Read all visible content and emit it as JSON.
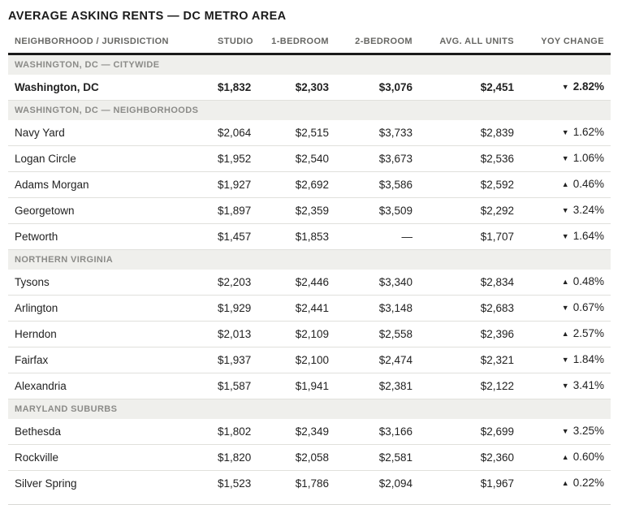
{
  "page": {
    "title": "AVERAGE ASKING RENTS — DC METRO AREA"
  },
  "colors": {
    "down_red": "#c0442a",
    "up_green": "#0f9271",
    "header_rule": "#1a1a1a",
    "row_rule": "#e0e0dc",
    "section_bg": "#efefec",
    "section_text": "#8b8b88",
    "column_header_text": "#666663"
  },
  "icons": {
    "trend_up": "▲",
    "trend_down": "▼"
  },
  "chart_data": {
    "type": "table",
    "title": "AVERAGE ASKING RENTS — DC METRO AREA",
    "columns": [
      "NEIGHBORHOOD / JURISDICTION",
      "STUDIO",
      "1-BEDROOM",
      "2-BEDROOM",
      "AVG. ALL UNITS",
      "YOY CHANGE"
    ],
    "sections": [
      {
        "label": "WASHINGTON, DC — CITYWIDE",
        "rows": [
          {
            "name": "Washington, DC",
            "values": [
              "$1,832",
              "$2,303",
              "$3,076",
              "$2,451"
            ],
            "yoy": "2.82%",
            "direction": "down",
            "emphasis": true
          }
        ]
      },
      {
        "label": "WASHINGTON, DC — NEIGHBORHOODS",
        "rows": [
          {
            "name": "Navy Yard",
            "values": [
              "$2,064",
              "$2,515",
              "$3,733",
              "$2,839"
            ],
            "yoy": "1.62%",
            "direction": "down",
            "emphasis": false
          },
          {
            "name": "Logan Circle",
            "values": [
              "$1,952",
              "$2,540",
              "$3,673",
              "$2,536"
            ],
            "yoy": "1.06%",
            "direction": "down",
            "emphasis": false
          },
          {
            "name": "Adams Morgan",
            "values": [
              "$1,927",
              "$2,692",
              "$3,586",
              "$2,592"
            ],
            "yoy": "0.46%",
            "direction": "up",
            "emphasis": false
          },
          {
            "name": "Georgetown",
            "values": [
              "$1,897",
              "$2,359",
              "$3,509",
              "$2,292"
            ],
            "yoy": "3.24%",
            "direction": "down",
            "emphasis": false
          },
          {
            "name": "Petworth",
            "values": [
              "$1,457",
              "$1,853",
              "—",
              "$1,707"
            ],
            "yoy": "1.64%",
            "direction": "down",
            "emphasis": false
          }
        ]
      },
      {
        "label": "NORTHERN VIRGINIA",
        "rows": [
          {
            "name": "Tysons",
            "values": [
              "$2,203",
              "$2,446",
              "$3,340",
              "$2,834"
            ],
            "yoy": "0.48%",
            "direction": "up",
            "emphasis": false
          },
          {
            "name": "Arlington",
            "values": [
              "$1,929",
              "$2,441",
              "$3,148",
              "$2,683"
            ],
            "yoy": "0.67%",
            "direction": "down",
            "emphasis": false
          },
          {
            "name": "Herndon",
            "values": [
              "$2,013",
              "$2,109",
              "$2,558",
              "$2,396"
            ],
            "yoy": "2.57%",
            "direction": "up",
            "emphasis": false
          },
          {
            "name": "Fairfax",
            "values": [
              "$1,937",
              "$2,100",
              "$2,474",
              "$2,321"
            ],
            "yoy": "1.84%",
            "direction": "down",
            "emphasis": false
          },
          {
            "name": "Alexandria",
            "values": [
              "$1,587",
              "$1,941",
              "$2,381",
              "$2,122"
            ],
            "yoy": "3.41%",
            "direction": "down",
            "emphasis": false
          }
        ]
      },
      {
        "label": "MARYLAND SUBURBS",
        "rows": [
          {
            "name": "Bethesda",
            "values": [
              "$1,802",
              "$2,349",
              "$3,166",
              "$2,699"
            ],
            "yoy": "3.25%",
            "direction": "down",
            "emphasis": false
          },
          {
            "name": "Rockville",
            "values": [
              "$1,820",
              "$2,058",
              "$2,581",
              "$2,360"
            ],
            "yoy": "0.60%",
            "direction": "up",
            "emphasis": false
          },
          {
            "name": "Silver Spring",
            "values": [
              "$1,523",
              "$1,786",
              "$2,094",
              "$1,967"
            ],
            "yoy": "0.22%",
            "direction": "up",
            "emphasis": false
          }
        ]
      }
    ]
  }
}
